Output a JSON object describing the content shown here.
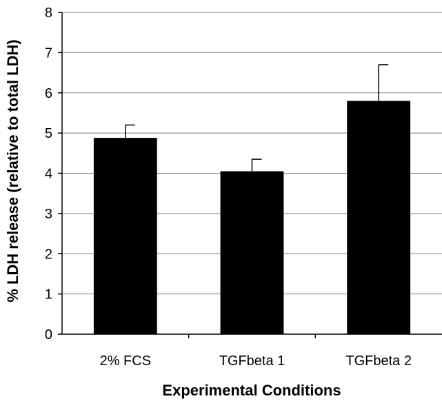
{
  "chart_data": {
    "type": "bar",
    "title": "",
    "xlabel": "Experimental Conditions",
    "ylabel": "% LDH release (relative to total LDH)",
    "categories": [
      "2% FCS",
      "TGFbeta 1",
      "TGFbeta 2"
    ],
    "values": [
      4.88,
      4.05,
      5.8
    ],
    "error_plus": [
      0.32,
      0.3,
      0.9
    ],
    "ylim": [
      0,
      8
    ],
    "yticks": [
      "0",
      "1",
      "2",
      "3",
      "4",
      "5",
      "6",
      "7",
      "8"
    ],
    "grid": true,
    "bar_color": "#000000",
    "gridline_color": "#808080"
  }
}
